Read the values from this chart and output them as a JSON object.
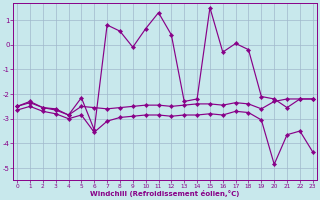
{
  "xlabel": "Windchill (Refroidissement éolien,°C)",
  "bg_color": "#c8e8ec",
  "grid_color": "#a0b8cc",
  "line_color": "#880088",
  "xlim": [
    -0.3,
    23.3
  ],
  "ylim": [
    -5.5,
    1.7
  ],
  "yticks": [
    1,
    0,
    -1,
    -2,
    -3,
    -4,
    -5
  ],
  "xticks": [
    0,
    1,
    2,
    3,
    4,
    5,
    6,
    7,
    8,
    9,
    10,
    11,
    12,
    13,
    14,
    15,
    16,
    17,
    18,
    19,
    20,
    21,
    22,
    23
  ],
  "series_zigzag_x": [
    0,
    1,
    2,
    3,
    4,
    5,
    6,
    7,
    8,
    9,
    10,
    11,
    12,
    13,
    14,
    15,
    16,
    17,
    18,
    19,
    20,
    21,
    22,
    23
  ],
  "series_zigzag_y": [
    -2.5,
    -2.3,
    -2.55,
    -2.6,
    -2.85,
    -2.15,
    -3.45,
    0.8,
    0.55,
    -0.1,
    0.65,
    1.3,
    0.4,
    -2.3,
    -2.2,
    1.5,
    -0.3,
    0.05,
    -0.2,
    -2.1,
    -2.2,
    -2.55,
    -2.2,
    -2.2
  ],
  "series_flat_x": [
    0,
    1,
    2,
    3,
    4,
    5,
    6,
    7,
    8,
    9,
    10,
    11,
    12,
    13,
    14,
    15,
    16,
    17,
    18,
    19,
    20,
    21,
    22,
    23
  ],
  "series_flat_y": [
    -2.5,
    -2.35,
    -2.55,
    -2.65,
    -2.85,
    -2.5,
    -2.55,
    -2.6,
    -2.55,
    -2.5,
    -2.45,
    -2.45,
    -2.5,
    -2.45,
    -2.4,
    -2.4,
    -2.45,
    -2.35,
    -2.4,
    -2.6,
    -2.3,
    -2.2,
    -2.2,
    -2.2
  ],
  "series_diag_x": [
    0,
    1,
    2,
    3,
    4,
    5,
    6,
    7,
    8,
    9,
    10,
    11,
    12,
    13,
    14,
    15,
    16,
    17,
    18,
    19,
    20,
    21,
    22,
    23
  ],
  "series_diag_y": [
    -2.65,
    -2.5,
    -2.7,
    -2.8,
    -3.0,
    -2.85,
    -3.55,
    -3.1,
    -2.95,
    -2.9,
    -2.85,
    -2.85,
    -2.9,
    -2.85,
    -2.85,
    -2.8,
    -2.85,
    -2.7,
    -2.75,
    -3.05,
    -4.85,
    -3.65,
    -3.5,
    -4.35
  ]
}
